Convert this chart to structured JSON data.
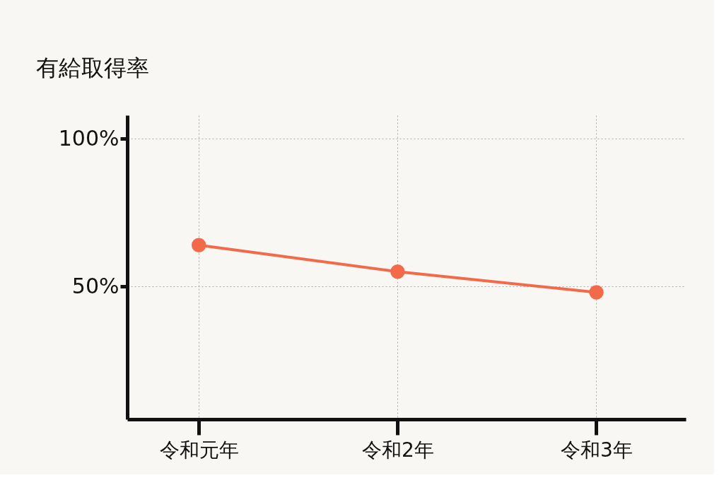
{
  "chart_data": {
    "type": "line",
    "ylabel": "有給取得率",
    "categories": [
      "令和元年",
      "令和2年",
      "令和3年"
    ],
    "series": [
      {
        "color": "#f26a4a",
        "values": [
          64,
          55,
          48
        ]
      }
    ],
    "ylim": [
      5,
      108
    ],
    "yticks": [
      {
        "value": 50,
        "label": "50%"
      },
      {
        "value": 100,
        "label": "100%"
      }
    ],
    "grid": true,
    "marker": "circle",
    "line_style": "solid"
  }
}
